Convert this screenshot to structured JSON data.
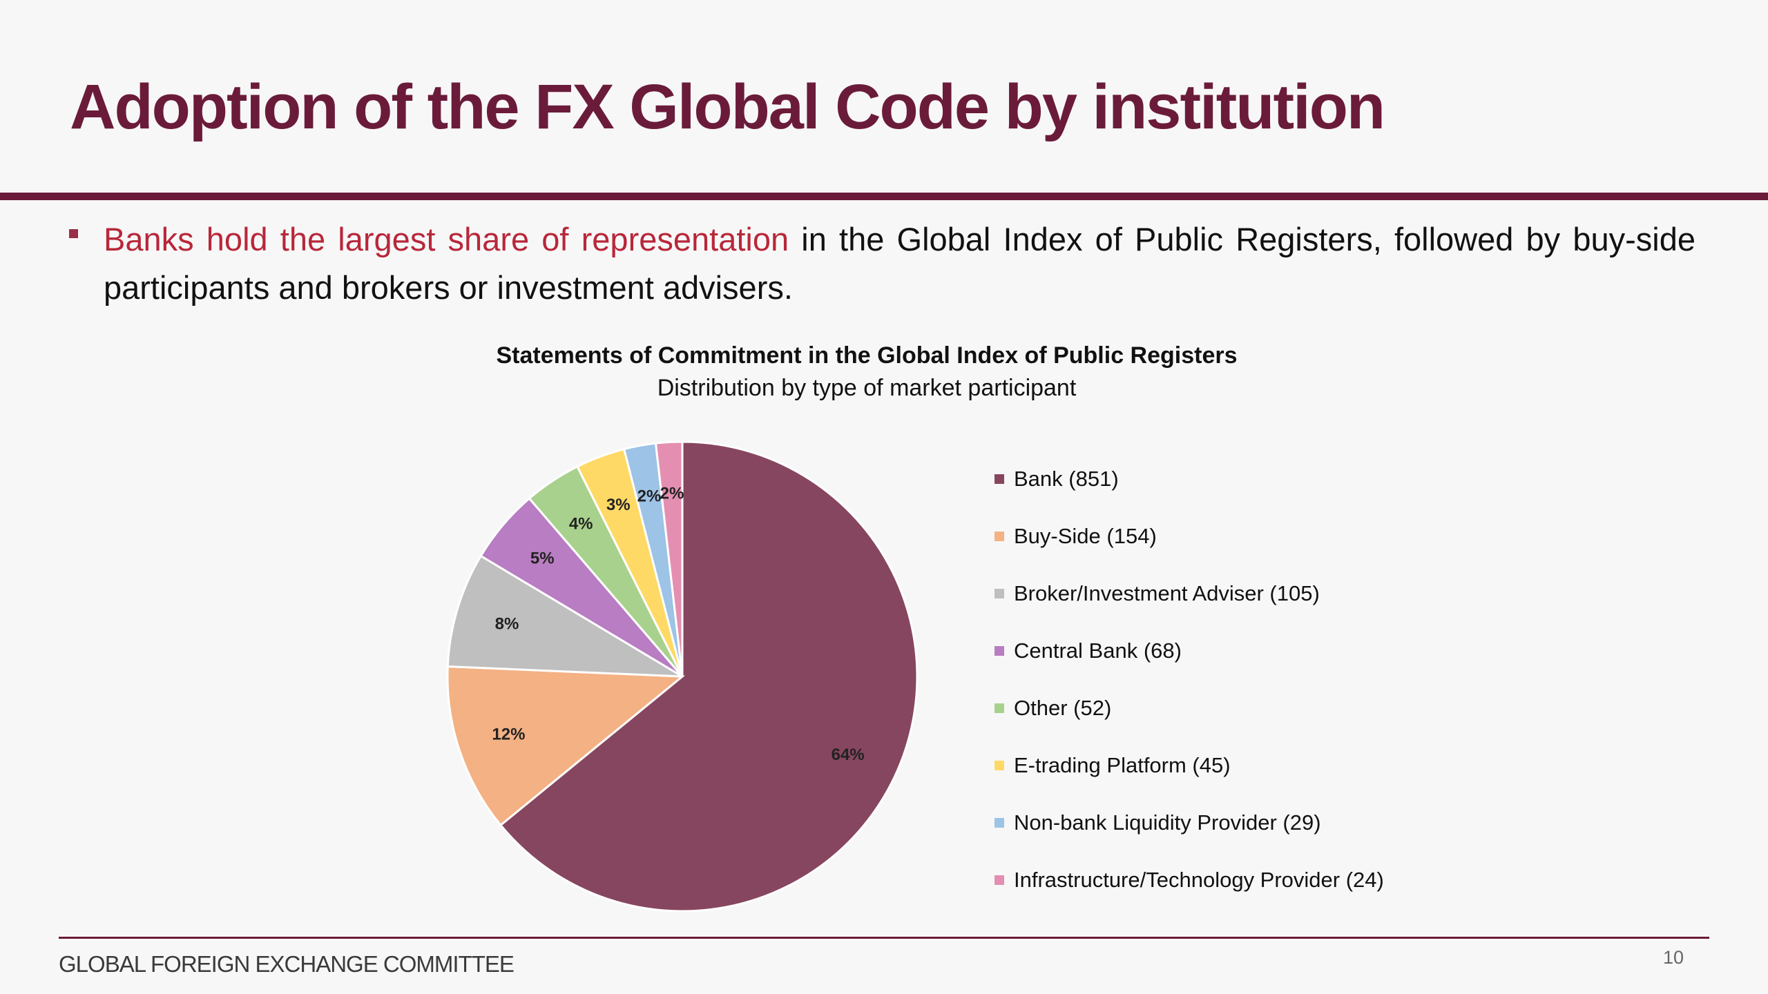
{
  "slide": {
    "title": "Adoption of the FX Global Code by institution",
    "bullet_highlight": "Banks hold the largest share of representation",
    "bullet_rest": " in the Global Index of Public Registers, followed by buy-side participants and brokers or investment advisers.",
    "footer_org": "GLOBAL FOREIGN EXCHANGE COMMITTEE",
    "page_number": "10",
    "colors": {
      "title": "#6b1b3a",
      "highlight": "#b8273a",
      "rule": "#6b1b3a"
    }
  },
  "chart_data": {
    "type": "pie",
    "title": "Statements of Commitment in the Global Index of Public Registers",
    "subtitle": "Distribution by type of market participant",
    "legend_position": "right",
    "start_angle_deg": 0,
    "direction": "clockwise",
    "slices": [
      {
        "label": "Bank (851)",
        "value": 851,
        "pct_label": "64%",
        "color": "#87465f"
      },
      {
        "label": "Buy-Side (154)",
        "value": 154,
        "pct_label": "12%",
        "color": "#f4b183"
      },
      {
        "label": "Broker/Investment Adviser (105)",
        "value": 105,
        "pct_label": "8%",
        "color": "#bfbfbf"
      },
      {
        "label": "Central Bank (68)",
        "value": 68,
        "pct_label": "5%",
        "color": "#b87dc2"
      },
      {
        "label": "Other (52)",
        "value": 52,
        "pct_label": "4%",
        "color": "#a9d18e"
      },
      {
        "label": "E-trading Platform (45)",
        "value": 45,
        "pct_label": "3%",
        "color": "#ffd966"
      },
      {
        "label": "Non-bank Liquidity Provider (29)",
        "value": 29,
        "pct_label": "2%",
        "color": "#9dc3e6"
      },
      {
        "label": "Infrastructure/Technology Provider (24)",
        "value": 24,
        "pct_label": "2%",
        "color": "#e48fb1"
      }
    ]
  }
}
